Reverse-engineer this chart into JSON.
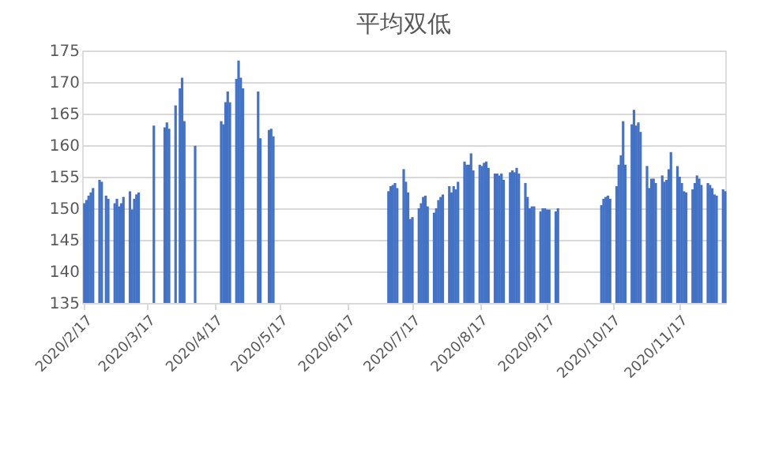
{
  "chart_data": {
    "type": "bar",
    "title": "平均双低",
    "color": "#4472c4",
    "grid": "y",
    "ylim": [
      135,
      175
    ],
    "yticks": [
      135,
      140,
      145,
      150,
      155,
      160,
      165,
      170,
      175
    ],
    "xlim": [
      "2020-02-16",
      "2020-12-08"
    ],
    "xticks": [
      {
        "value": "2020-02-17",
        "label": "2020/2/17"
      },
      {
        "value": "2020-03-17",
        "label": "2020/3/17"
      },
      {
        "value": "2020-04-17",
        "label": "2020/4/17"
      },
      {
        "value": "2020-05-17",
        "label": "2020/5/17"
      },
      {
        "value": "2020-06-17",
        "label": "2020/6/17"
      },
      {
        "value": "2020-07-17",
        "label": "2020/7/17"
      },
      {
        "value": "2020-08-17",
        "label": "2020/8/17"
      },
      {
        "value": "2020-09-17",
        "label": "2020/9/17"
      },
      {
        "value": "2020-10-17",
        "label": "2020/10/17"
      },
      {
        "value": "2020-11-17",
        "label": "2020/11/17"
      }
    ],
    "x": [
      "2020-02-17",
      "2020-02-18",
      "2020-02-19",
      "2020-02-20",
      "2020-02-21",
      "2020-02-24",
      "2020-02-25",
      "2020-02-27",
      "2020-02-28",
      "2020-03-02",
      "2020-03-03",
      "2020-03-04",
      "2020-03-05",
      "2020-03-06",
      "2020-03-09",
      "2020-03-10",
      "2020-03-11",
      "2020-03-12",
      "2020-03-13",
      "2020-03-20",
      "2020-03-25",
      "2020-03-26",
      "2020-03-27",
      "2020-03-30",
      "2020-04-01",
      "2020-04-02",
      "2020-04-03",
      "2020-04-08",
      "2020-04-20",
      "2020-04-21",
      "2020-04-22",
      "2020-04-23",
      "2020-04-24",
      "2020-04-27",
      "2020-04-28",
      "2020-04-29",
      "2020-04-30",
      "2020-05-07",
      "2020-05-08",
      "2020-05-12",
      "2020-05-13",
      "2020-05-14",
      "2020-07-06",
      "2020-07-07",
      "2020-07-08",
      "2020-07-09",
      "2020-07-10",
      "2020-07-13",
      "2020-07-14",
      "2020-07-15",
      "2020-07-16",
      "2020-07-17",
      "2020-07-20",
      "2020-07-21",
      "2020-07-22",
      "2020-07-23",
      "2020-07-24",
      "2020-07-27",
      "2020-07-28",
      "2020-07-29",
      "2020-07-30",
      "2020-07-31",
      "2020-08-03",
      "2020-08-04",
      "2020-08-05",
      "2020-08-06",
      "2020-08-07",
      "2020-08-10",
      "2020-08-11",
      "2020-08-12",
      "2020-08-13",
      "2020-08-14",
      "2020-08-17",
      "2020-08-18",
      "2020-08-19",
      "2020-08-20",
      "2020-08-21",
      "2020-08-24",
      "2020-08-25",
      "2020-08-26",
      "2020-08-27",
      "2020-08-28",
      "2020-08-31",
      "2020-09-01",
      "2020-09-02",
      "2020-09-03",
      "2020-09-04",
      "2020-09-07",
      "2020-09-08",
      "2020-09-09",
      "2020-09-10",
      "2020-09-11",
      "2020-09-14",
      "2020-09-15",
      "2020-09-16",
      "2020-09-17",
      "2020-09-18",
      "2020-09-21",
      "2020-09-22",
      "2020-10-12",
      "2020-10-13",
      "2020-10-14",
      "2020-10-15",
      "2020-10-16",
      "2020-10-19",
      "2020-10-20",
      "2020-10-21",
      "2020-10-22",
      "2020-10-23",
      "2020-10-26",
      "2020-10-27",
      "2020-10-28",
      "2020-10-29",
      "2020-10-30",
      "2020-11-02",
      "2020-11-03",
      "2020-11-04",
      "2020-11-05",
      "2020-11-06",
      "2020-11-09",
      "2020-11-10",
      "2020-11-11",
      "2020-11-12",
      "2020-11-13",
      "2020-11-16",
      "2020-11-17",
      "2020-11-18",
      "2020-11-19",
      "2020-11-20",
      "2020-11-23",
      "2020-11-24",
      "2020-11-25",
      "2020-11-26",
      "2020-11-27",
      "2020-11-30",
      "2020-12-01",
      "2020-12-02",
      "2020-12-03",
      "2020-12-04",
      "2020-12-07",
      "2020-12-08"
    ],
    "values": [
      150.8,
      151.3,
      152.0,
      152.5,
      153.2,
      154.5,
      154.2,
      152.0,
      151.5,
      150.8,
      151.5,
      150.3,
      150.8,
      151.8,
      152.7,
      149.8,
      151.5,
      152.2,
      152.5,
      163.1,
      162.8,
      163.6,
      162.6,
      166.3,
      169.0,
      170.7,
      163.8,
      159.9,
      163.8,
      163.3,
      166.8,
      168.5,
      166.8,
      170.5,
      173.4,
      170.7,
      169.0,
      168.5,
      161.1,
      162.4,
      162.6,
      161.4,
      152.7,
      153.5,
      153.7,
      154.0,
      153.2,
      156.2,
      154.2,
      152.5,
      148.3,
      148.6,
      150.0,
      150.8,
      151.8,
      152.0,
      150.3,
      149.3,
      150.0,
      151.3,
      151.8,
      152.2,
      153.5,
      152.5,
      153.5,
      153.0,
      154.2,
      157.4,
      156.9,
      156.9,
      158.7,
      156.0,
      156.9,
      156.7,
      157.2,
      157.4,
      156.4,
      155.5,
      155.5,
      155.2,
      155.5,
      154.5,
      155.7,
      156.0,
      155.7,
      156.4,
      155.5,
      154.0,
      151.8,
      150.0,
      150.3,
      150.3,
      149.5,
      150.0,
      150.0,
      149.8,
      149.8,
      149.5,
      150.0,
      150.5,
      151.5,
      151.8,
      152.0,
      151.5,
      153.5,
      156.9,
      158.4,
      163.8,
      156.9,
      163.3,
      165.6,
      163.1,
      163.6,
      162.1,
      156.7,
      153.2,
      154.7,
      154.7,
      154.0,
      155.2,
      154.2,
      154.5,
      156.2,
      158.9,
      156.7,
      155.0,
      154.0,
      152.7,
      152.5,
      153.0,
      154.0,
      155.2,
      154.7,
      153.7,
      154.0,
      153.7,
      153.2,
      152.2,
      152.0,
      153.0,
      152.7
    ]
  }
}
